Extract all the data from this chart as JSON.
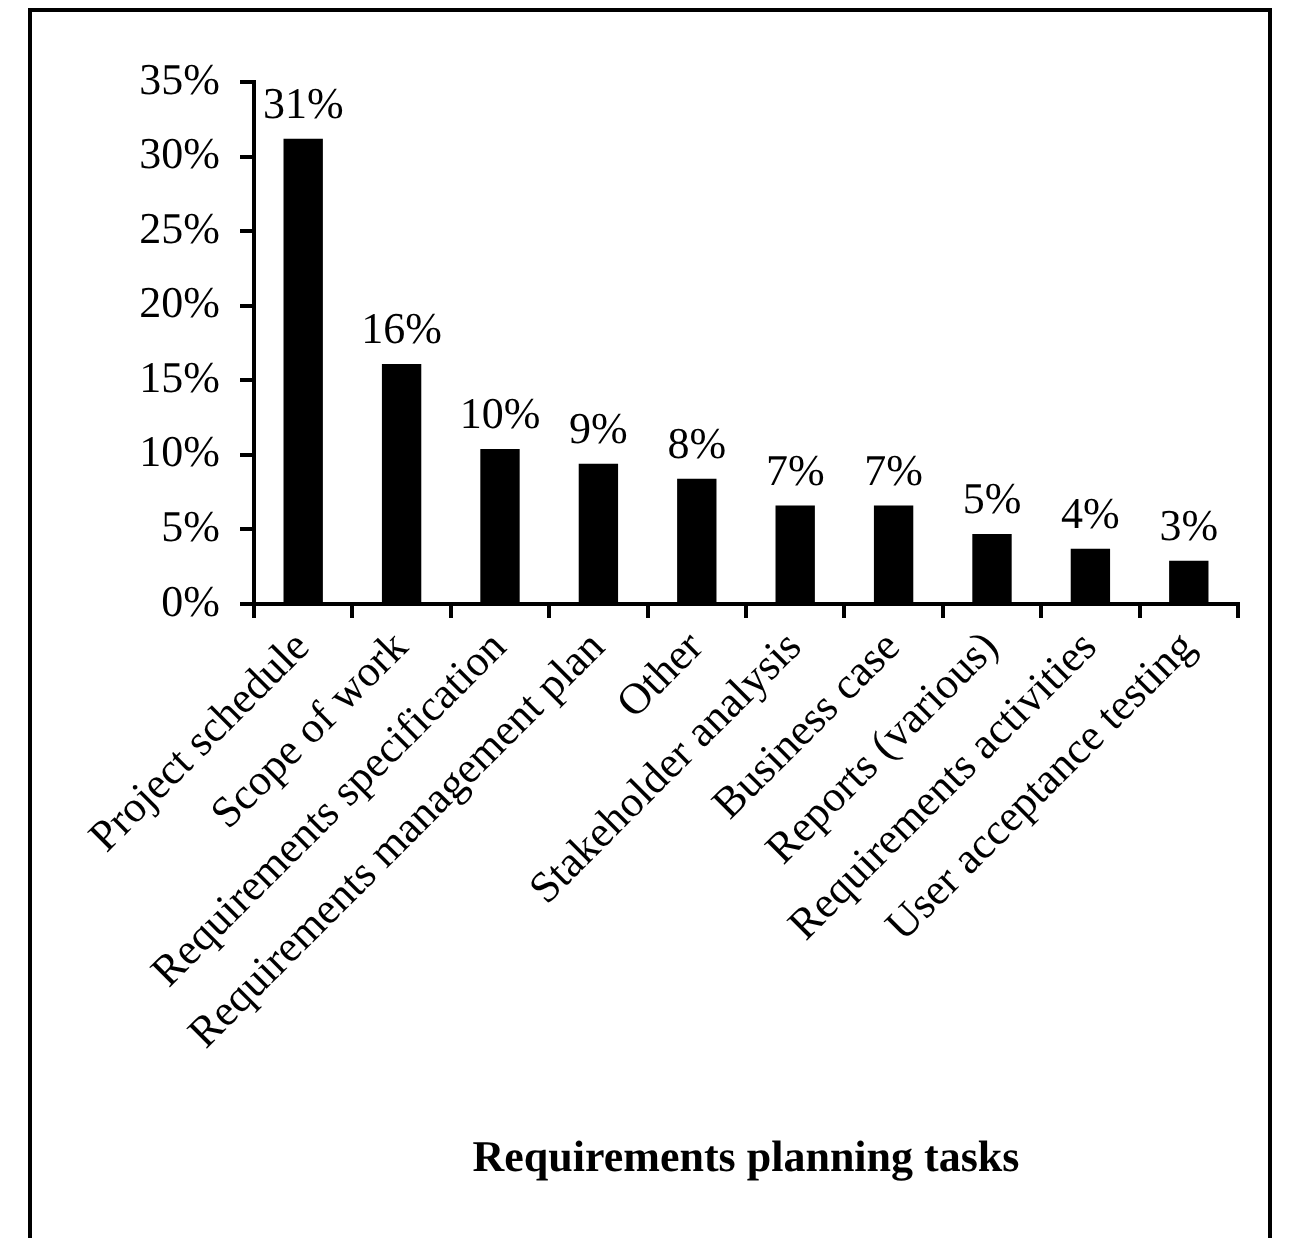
{
  "chart_data": {
    "type": "bar",
    "xlabel": "Requirements planning tasks",
    "categories": [
      "Project schedule",
      "Scope of work",
      "Requirements specification",
      "Requirements management plan",
      "Other",
      "Stakeholder analysis",
      "Business case",
      "Reports (various)",
      "Requirements activities",
      "User acceptance testing"
    ],
    "values": [
      31.2,
      16.1,
      10.4,
      9.4,
      8.4,
      6.6,
      6.6,
      4.7,
      3.7,
      2.9
    ],
    "value_labels": [
      "31%",
      "16%",
      "10%",
      "9%",
      "8%",
      "7%",
      "7%",
      "5%",
      "4%",
      "3%"
    ],
    "color": "#000000",
    "ylim": [
      0,
      35
    ],
    "yticks": [
      {
        "value": 0,
        "label": "0%"
      },
      {
        "value": 5,
        "label": "5%"
      },
      {
        "value": 10,
        "label": "10%"
      },
      {
        "value": 15,
        "label": "15%"
      },
      {
        "value": 20,
        "label": "20%"
      },
      {
        "value": 25,
        "label": "25%"
      },
      {
        "value": 30,
        "label": "30%"
      },
      {
        "value": 35,
        "label": "35%"
      }
    ]
  }
}
